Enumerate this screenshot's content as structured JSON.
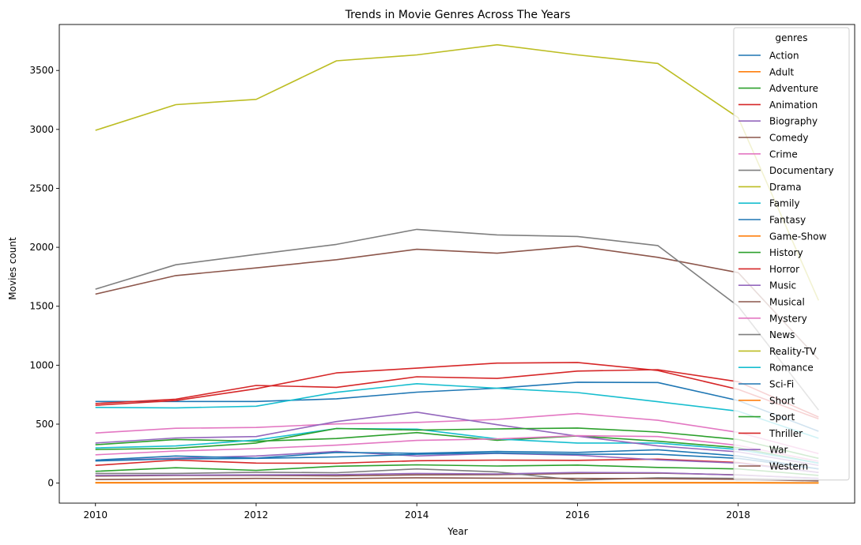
{
  "chart_data": {
    "type": "line",
    "title": "Trends in Movie Genres Across The Years",
    "xlabel": "Year",
    "ylabel": "Movies count",
    "xlim": [
      2009.55,
      2019.45
    ],
    "ylim": [
      -170,
      3890
    ],
    "xticks": [
      2010,
      2012,
      2014,
      2016,
      2018
    ],
    "yticks": [
      0,
      500,
      1000,
      1500,
      2000,
      2500,
      3000,
      3500
    ],
    "grid": false,
    "legend": {
      "title": "genres",
      "placement": "top-right"
    },
    "x": [
      2010,
      2011,
      2012,
      2013,
      2014,
      2015,
      2016,
      2017,
      2018,
      2019
    ],
    "series": [
      {
        "name": "Action",
        "color": "#1f77b4",
        "values": [
          692,
          692,
          692,
          715,
          771,
          805,
          856,
          853,
          700,
          440
        ]
      },
      {
        "name": "Adult",
        "color": "#ff7f0e",
        "values": [
          2,
          2,
          2,
          2,
          2,
          2,
          2,
          2,
          2,
          1
        ]
      },
      {
        "name": "Adventure",
        "color": "#2ca02c",
        "values": [
          325,
          370,
          355,
          378,
          428,
          363,
          400,
          355,
          300,
          170
        ]
      },
      {
        "name": "Animation",
        "color": "#d62728",
        "values": [
          150,
          195,
          170,
          168,
          190,
          195,
          193,
          203,
          175,
          90
        ]
      },
      {
        "name": "Biography",
        "color": "#9467bd",
        "values": [
          190,
          212,
          230,
          268,
          230,
          252,
          237,
          197,
          170,
          90
        ]
      },
      {
        "name": "Comedy",
        "color": "#8c564b",
        "values": [
          1603,
          1760,
          1825,
          1895,
          1983,
          1950,
          2010,
          1915,
          1785,
          1050
        ]
      },
      {
        "name": "Crime",
        "color": "#e377c2",
        "values": [
          425,
          465,
          472,
          502,
          515,
          540,
          590,
          533,
          430,
          250
        ]
      },
      {
        "name": "Documentary",
        "color": "#7f7f7f",
        "values": [
          1645,
          1852,
          1940,
          2025,
          2152,
          2105,
          2092,
          2015,
          1500,
          620
        ]
      },
      {
        "name": "Drama",
        "color": "#bcbd22",
        "values": [
          2992,
          3210,
          3255,
          3582,
          3632,
          3718,
          3632,
          3560,
          3100,
          1550
        ]
      },
      {
        "name": "Family",
        "color": "#17becf",
        "values": [
          298,
          315,
          365,
          463,
          458,
          375,
          340,
          340,
          285,
          170
        ]
      },
      {
        "name": "Fantasy",
        "color": "#1f77b4",
        "values": [
          195,
          230,
          212,
          260,
          253,
          268,
          260,
          283,
          230,
          120
        ]
      },
      {
        "name": "Game-Show",
        "color": "#ff7f0e",
        "values": [
          5,
          5,
          5,
          5,
          5,
          5,
          5,
          5,
          5,
          3
        ]
      },
      {
        "name": "History",
        "color": "#2ca02c",
        "values": [
          100,
          130,
          108,
          143,
          155,
          145,
          153,
          133,
          120,
          65
        ]
      },
      {
        "name": "Horror",
        "color": "#d62728",
        "values": [
          675,
          712,
          828,
          812,
          902,
          888,
          950,
          962,
          860,
          560
        ]
      },
      {
        "name": "Music",
        "color": "#9467bd",
        "values": [
          340,
          383,
          395,
          522,
          602,
          495,
          398,
          315,
          265,
          150
        ]
      },
      {
        "name": "Musical",
        "color": "#8c564b",
        "values": [
          60,
          65,
          65,
          62,
          70,
          72,
          82,
          85,
          70,
          40
        ]
      },
      {
        "name": "Mystery",
        "color": "#e377c2",
        "values": [
          240,
          272,
          292,
          322,
          362,
          375,
          402,
          395,
          320,
          185
        ]
      },
      {
        "name": "News",
        "color": "#7f7f7f",
        "values": [
          82,
          82,
          92,
          88,
          120,
          95,
          25,
          45,
          40,
          25
        ]
      },
      {
        "name": "Reality-TV",
        "color": "#bcbd22",
        "values": [
          3,
          3,
          3,
          3,
          3,
          3,
          3,
          3,
          3,
          2
        ]
      },
      {
        "name": "Romance",
        "color": "#17becf",
        "values": [
          642,
          638,
          652,
          770,
          843,
          805,
          768,
          690,
          610,
          380
        ]
      },
      {
        "name": "Sci-Fi",
        "color": "#1f77b4",
        "values": [
          188,
          205,
          210,
          222,
          245,
          255,
          245,
          245,
          210,
          120
        ]
      },
      {
        "name": "Short",
        "color": "#ff7f0e",
        "values": [
          2,
          2,
          2,
          2,
          2,
          2,
          2,
          2,
          2,
          1
        ]
      },
      {
        "name": "Sport",
        "color": "#2ca02c",
        "values": [
          285,
          295,
          340,
          463,
          450,
          460,
          467,
          433,
          370,
          210
        ]
      },
      {
        "name": "Thriller",
        "color": "#d62728",
        "values": [
          660,
          700,
          800,
          935,
          975,
          1018,
          1023,
          955,
          795,
          545
        ]
      },
      {
        "name": "War",
        "color": "#9467bd",
        "values": [
          65,
          68,
          70,
          72,
          82,
          78,
          90,
          88,
          68,
          40
        ]
      },
      {
        "name": "Western",
        "color": "#8c564b",
        "values": [
          30,
          35,
          40,
          38,
          45,
          42,
          40,
          38,
          32,
          18
        ]
      }
    ]
  }
}
